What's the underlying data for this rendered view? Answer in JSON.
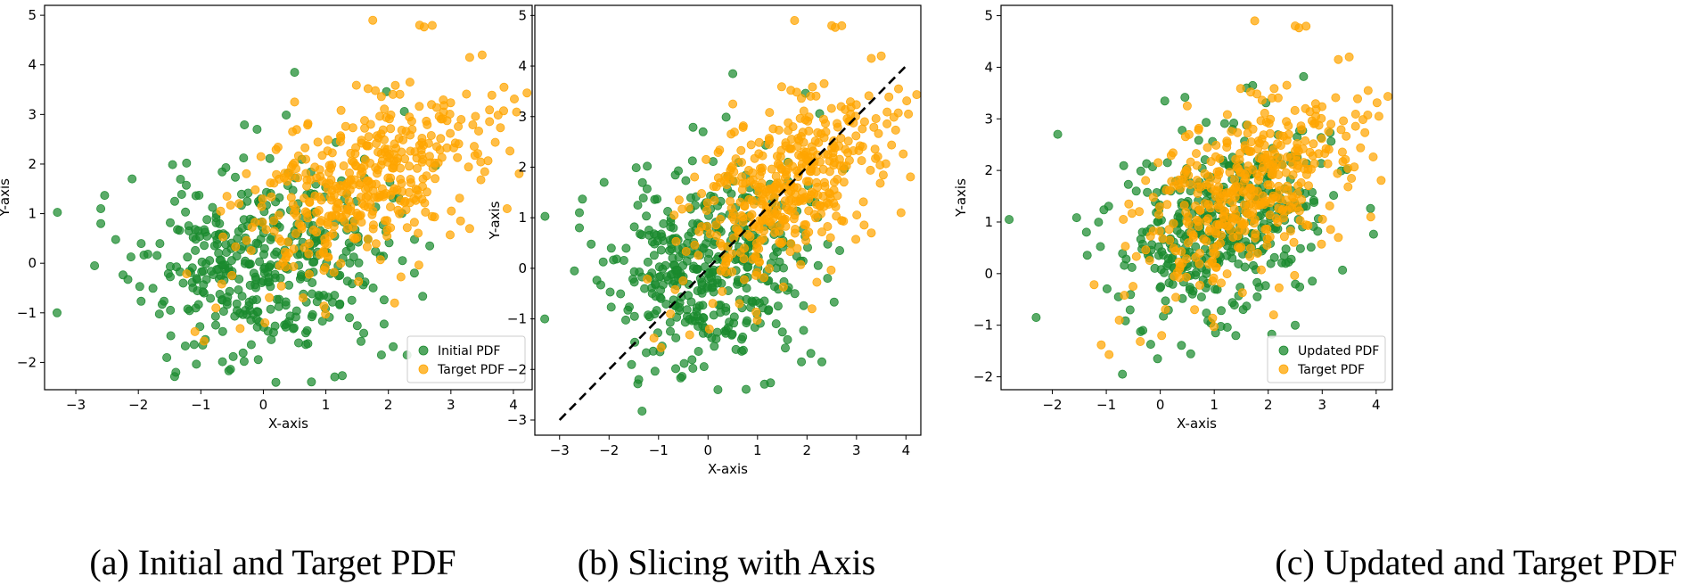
{
  "colors": {
    "green": "#1a8a2e",
    "orange": "#ffa500",
    "line": "#000000"
  },
  "chart_data": [
    {
      "type": "scatter",
      "caption": "(a) Initial and Target PDF",
      "xlabel": "X-axis",
      "ylabel": "Y-axis",
      "xlim": [
        -3.5,
        4.3
      ],
      "ylim": [
        -2.55,
        5.2
      ],
      "xticks": [
        -3,
        -2,
        -1,
        0,
        1,
        2,
        3,
        4
      ],
      "yticks": [
        -2,
        -1,
        0,
        1,
        2,
        3,
        4,
        5
      ],
      "legend": {
        "position": "lower-right",
        "entries": [
          "Initial PDF",
          "Target PDF"
        ]
      },
      "series": [
        {
          "name": "Initial PDF",
          "color": "green",
          "distribution": {
            "mean": [
              0.0,
              0.0
            ],
            "std": [
              0.95,
              0.95
            ],
            "corr": 0.1,
            "count": 420,
            "seed": 11
          },
          "anchor_points": [
            [
              -3.3,
              -1.0
            ],
            [
              -2.6,
              1.1
            ],
            [
              -2.6,
              0.8
            ],
            [
              -2.7,
              -0.05
            ],
            [
              0.5,
              3.85
            ],
            [
              -0.1,
              2.7
            ],
            [
              -1.4,
              -2.2
            ],
            [
              2.3,
              -1.85
            ],
            [
              0.2,
              -2.4
            ],
            [
              -2.1,
              1.7
            ]
          ]
        },
        {
          "name": "Target PDF",
          "color": "orange",
          "distribution": {
            "mean": [
              1.5,
              1.5
            ],
            "std": [
              0.95,
              0.95
            ],
            "corr": 0.5,
            "count": 420,
            "seed": 23
          },
          "anchor_points": [
            [
              1.75,
              4.9
            ],
            [
              2.5,
              4.8
            ],
            [
              3.5,
              4.2
            ],
            [
              3.3,
              4.15
            ],
            [
              4.05,
              3.05
            ],
            [
              3.85,
              3.55
            ],
            [
              3.9,
              1.1
            ],
            [
              3.3,
              0.7
            ],
            [
              0.5,
              3.25
            ],
            [
              2.1,
              -0.8
            ]
          ]
        }
      ]
    },
    {
      "type": "scatter",
      "caption": "(b) Slicing with Axis",
      "xlabel": "X-axis",
      "ylabel": "Y-axis",
      "xlim": [
        -3.5,
        4.3
      ],
      "ylim": [
        -3.3,
        5.2
      ],
      "xticks": [
        -3,
        -2,
        -1,
        0,
        1,
        2,
        3,
        4
      ],
      "yticks": [
        -3,
        -2,
        -1,
        0,
        1,
        2,
        3,
        4,
        5
      ],
      "series": [
        {
          "name": "Initial PDF",
          "color": "green",
          "distribution": {
            "mean": [
              0.0,
              0.0
            ],
            "std": [
              0.95,
              0.95
            ],
            "corr": 0.1,
            "count": 420,
            "seed": 11
          },
          "anchor_points": [
            [
              -3.3,
              -1.0
            ],
            [
              -2.6,
              1.1
            ],
            [
              -2.6,
              0.8
            ],
            [
              -2.7,
              -0.05
            ],
            [
              0.5,
              3.85
            ],
            [
              -0.1,
              2.7
            ],
            [
              -1.4,
              -2.2
            ],
            [
              2.3,
              -1.85
            ],
            [
              0.2,
              -2.4
            ],
            [
              -2.1,
              1.7
            ]
          ]
        },
        {
          "name": "Target PDF",
          "color": "orange",
          "distribution": {
            "mean": [
              1.5,
              1.5
            ],
            "std": [
              0.95,
              0.95
            ],
            "corr": 0.5,
            "count": 420,
            "seed": 23
          },
          "anchor_points": [
            [
              1.75,
              4.9
            ],
            [
              2.5,
              4.8
            ],
            [
              3.5,
              4.2
            ],
            [
              3.3,
              4.15
            ],
            [
              4.05,
              3.05
            ],
            [
              3.85,
              3.55
            ],
            [
              3.9,
              1.1
            ],
            [
              3.3,
              0.7
            ],
            [
              0.5,
              3.25
            ],
            [
              2.1,
              -0.8
            ]
          ]
        }
      ],
      "slice_line": {
        "from": [
          -3,
          -3
        ],
        "to": [
          4,
          4
        ],
        "style": "dashed"
      }
    },
    {
      "type": "scatter",
      "caption": "(c) Updated and Target PDF",
      "xlabel": "X-axis",
      "ylabel": "Y-axis",
      "xlim": [
        -2.95,
        4.3
      ],
      "ylim": [
        -2.25,
        5.2
      ],
      "xticks": [
        -2,
        -1,
        0,
        1,
        2,
        3,
        4
      ],
      "yticks": [
        -2,
        -1,
        0,
        1,
        2,
        3,
        4,
        5
      ],
      "legend": {
        "position": "lower-right",
        "entries": [
          "Updated PDF",
          "Target PDF"
        ]
      },
      "series": [
        {
          "name": "Updated PDF",
          "color": "green",
          "distribution": {
            "mean": [
              1.2,
              1.0
            ],
            "std": [
              0.95,
              0.9
            ],
            "corr": 0.3,
            "count": 420,
            "seed": 37
          },
          "anchor_points": [
            [
              -2.8,
              1.05
            ],
            [
              -2.3,
              -0.85
            ],
            [
              -1.9,
              2.7
            ],
            [
              -0.7,
              -1.95
            ],
            [
              -0.05,
              -1.65
            ],
            [
              1.6,
              3.6
            ],
            [
              2.5,
              -1.0
            ],
            [
              1.4,
              -1.2
            ]
          ]
        },
        {
          "name": "Target PDF",
          "color": "orange",
          "distribution": {
            "mean": [
              1.5,
              1.5
            ],
            "std": [
              0.95,
              0.95
            ],
            "corr": 0.5,
            "count": 420,
            "seed": 23
          },
          "anchor_points": [
            [
              1.75,
              4.9
            ],
            [
              2.5,
              4.8
            ],
            [
              3.5,
              4.2
            ],
            [
              3.3,
              4.15
            ],
            [
              4.05,
              3.05
            ],
            [
              3.85,
              3.55
            ],
            [
              3.9,
              1.1
            ],
            [
              3.3,
              0.7
            ],
            [
              0.5,
              3.25
            ],
            [
              2.1,
              -0.8
            ]
          ]
        }
      ]
    }
  ]
}
